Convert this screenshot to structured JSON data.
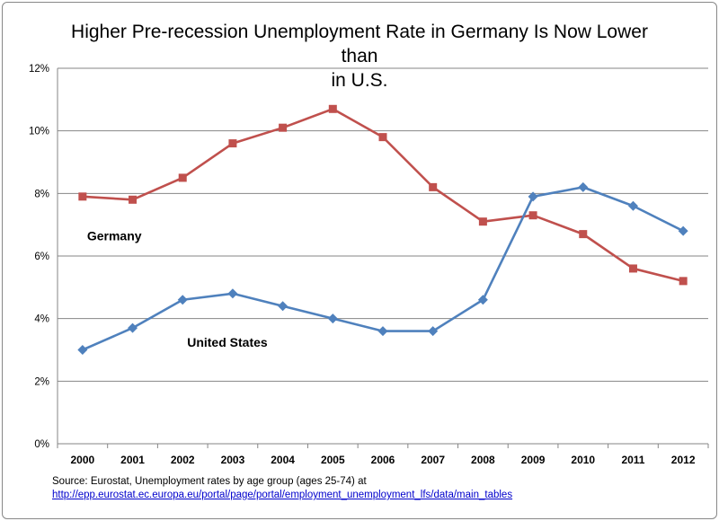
{
  "chart_data": {
    "type": "line",
    "title": "Higher Pre-recession Unemployment Rate in Germany Is Now Lower than in U.S.",
    "title_lines": [
      "Higher Pre-recession Unemployment Rate in Germany Is Now Lower than",
      "in U.S."
    ],
    "categories": [
      "2000",
      "2001",
      "2002",
      "2003",
      "2004",
      "2005",
      "2006",
      "2007",
      "2008",
      "2009",
      "2010",
      "2011",
      "2012"
    ],
    "series": [
      {
        "name": "Germany",
        "color": "#C0504D",
        "marker": "square",
        "values": [
          7.9,
          7.8,
          8.5,
          9.6,
          10.1,
          10.7,
          9.8,
          8.2,
          7.1,
          7.3,
          6.7,
          5.6,
          5.2
        ]
      },
      {
        "name": "United States",
        "color": "#4F81BD",
        "marker": "diamond",
        "values": [
          3.0,
          3.7,
          4.6,
          4.8,
          4.4,
          4.0,
          3.6,
          3.6,
          4.6,
          7.9,
          8.2,
          7.6,
          6.8
        ]
      }
    ],
    "ylim": [
      0,
      12
    ],
    "yticks": [
      0,
      2,
      4,
      6,
      8,
      10,
      12
    ],
    "ytick_labels": [
      "0%",
      "2%",
      "4%",
      "6%",
      "8%",
      "10%",
      "12%"
    ],
    "grid": true,
    "xlabel": "",
    "ylabel": "",
    "annotations": [
      {
        "text": "Germany",
        "series": "Germany",
        "x": "2000",
        "y": 6.5
      },
      {
        "text": "United States",
        "series": "United States",
        "x": "2002",
        "y": 3.1
      }
    ]
  },
  "source": {
    "text": "Source: Eurostat, Unemployment rates by age group (ages 25-74)  at",
    "link": "http://epp.eurostat.ec.europa.eu/portal/page/portal/employment_unemployment_lfs/data/main_tables"
  }
}
